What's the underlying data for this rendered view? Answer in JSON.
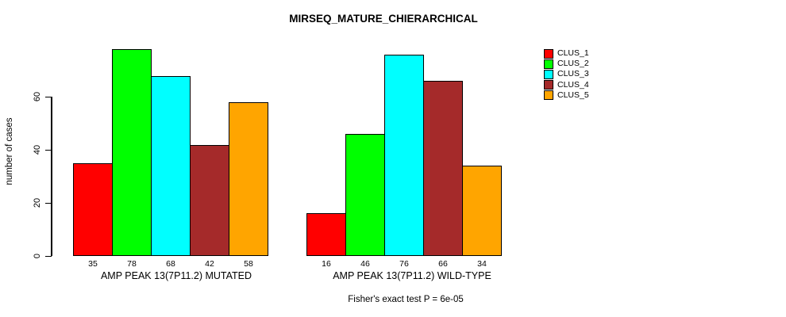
{
  "title": "MIRSEQ_MATURE_CHIERARCHICAL",
  "caption": "Fisher's exact test P = 6e-05",
  "legend": {
    "items": [
      {
        "label": "CLUS_1",
        "color": "#FF0000"
      },
      {
        "label": "CLUS_2",
        "color": "#00FF00"
      },
      {
        "label": "CLUS_3",
        "color": "#00FFFF"
      },
      {
        "label": "CLUS_4",
        "color": "#A52A2A"
      },
      {
        "label": "CLUS_5",
        "color": "#FFA500"
      }
    ]
  },
  "chart_data": {
    "type": "bar",
    "title": "MIRSEQ_MATURE_CHIERARCHICAL",
    "ylabel": "number of cases",
    "ylim": [
      0,
      60
    ],
    "yticks": [
      0,
      20,
      40,
      60
    ],
    "grid": false,
    "legend_position": "right",
    "series_names": [
      "CLUS_1",
      "CLUS_2",
      "CLUS_3",
      "CLUS_4",
      "CLUS_5"
    ],
    "series_colors": [
      "#FF0000",
      "#00FF00",
      "#00FFFF",
      "#A52A2A",
      "#FFA500"
    ],
    "groups": [
      {
        "label": "AMP PEAK 13(7P11.2) MUTATED",
        "values": [
          35,
          78,
          68,
          42,
          58
        ]
      },
      {
        "label": "AMP PEAK 13(7P11.2) WILD-TYPE",
        "values": [
          16,
          46,
          76,
          66,
          34
        ]
      }
    ],
    "annotation": "Fisher's exact test P = 6e-05"
  }
}
